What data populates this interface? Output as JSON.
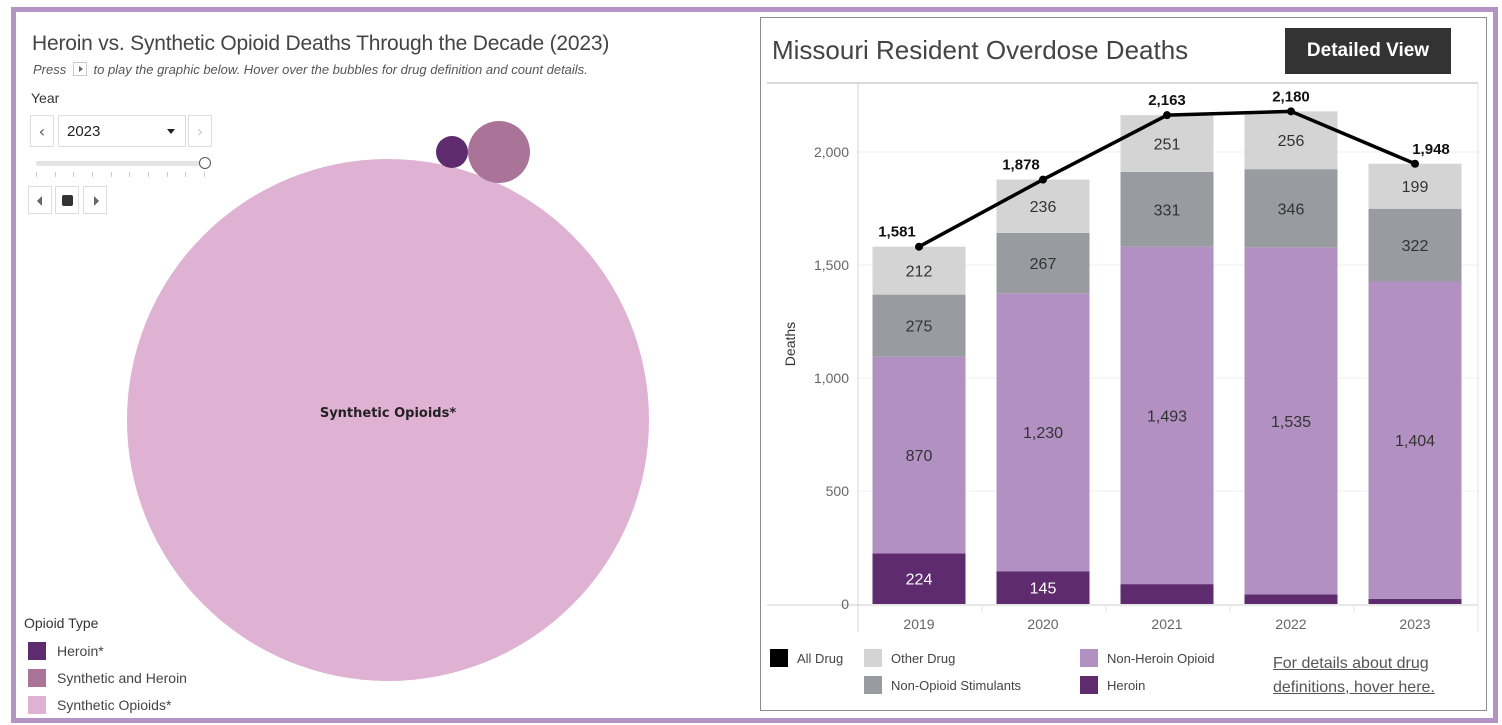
{
  "left_panel": {
    "title": "Heroin vs. Synthetic Opioid Deaths Through the Decade (2023)",
    "subtitle_prefix": "Press",
    "subtitle_suffix": "to play the graphic below. Hover over the bubbles for drug definition and count details.",
    "year_filter": {
      "label": "Year",
      "selected": "2023",
      "prev_icon": "‹",
      "next_icon": "›",
      "slider_ticks": 10,
      "slider_position": 1.0
    },
    "bubble_chart": {
      "type": "bubble",
      "year": "2023",
      "center_label": "Synthetic Opioids*",
      "bubbles": [
        {
          "name": "Synthetic Opioids*",
          "color": "#dfb1d2",
          "relative_size": 1.0
        },
        {
          "name": "Synthetic and Heroin",
          "color": "#a97498",
          "relative_size": 0.014
        },
        {
          "name": "Heroin*",
          "color": "#5e2b6e",
          "relative_size": 0.0038
        }
      ]
    },
    "legend": {
      "title": "Opioid Type",
      "items": [
        {
          "label": "Heroin*",
          "color": "#5e2b6e"
        },
        {
          "label": "Synthetic and Heroin",
          "color": "#a97498"
        },
        {
          "label": "Synthetic Opioids*",
          "color": "#dfb1d2"
        }
      ]
    }
  },
  "right_panel": {
    "title": "Missouri Resident Overdose Deaths",
    "detail_button": "Detailed View",
    "link_text": "For details about drug definitions, hover here."
  },
  "chart_data": {
    "type": "bar",
    "stacked": true,
    "title": "Missouri Resident Overdose Deaths",
    "xlabel": "",
    "ylabel": "Deaths",
    "ylim": [
      0,
      2280
    ],
    "yticks": [
      0,
      500,
      1000,
      1500,
      2000
    ],
    "ytick_labels": [
      "0",
      "500",
      "1,000",
      "1,500",
      "2,000"
    ],
    "grid": true,
    "categories": [
      "2019",
      "2020",
      "2021",
      "2022",
      "2023"
    ],
    "series": [
      {
        "name": "Heroin",
        "color": "#5e2b6e",
        "values": [
          224,
          145,
          88,
          43,
          23
        ],
        "labels": [
          "224",
          "145",
          "",
          "",
          ""
        ],
        "label_color": "#ffffff"
      },
      {
        "name": "Non-Heroin Opioid",
        "color": "#b291c2",
        "values": [
          870,
          1230,
          1493,
          1535,
          1404
        ],
        "labels": [
          "870",
          "1,230",
          "1,493",
          "1,535",
          "1,404"
        ],
        "label_color": "#333333"
      },
      {
        "name": "Non-Opioid Stimulants",
        "color": "#989ba0",
        "values": [
          275,
          267,
          331,
          346,
          322
        ],
        "labels": [
          "275",
          "267",
          "331",
          "346",
          "322"
        ],
        "label_color": "#333333"
      },
      {
        "name": "Other Drug",
        "color": "#d4d4d4",
        "values": [
          212,
          236,
          251,
          256,
          199
        ],
        "labels": [
          "212",
          "236",
          "251",
          "256",
          "199"
        ],
        "label_color": "#333333"
      }
    ],
    "line": {
      "name": "All Drug",
      "color": "#000000",
      "values": [
        1581,
        1878,
        2163,
        2180,
        1948
      ],
      "labels": [
        "1,581",
        "1,878",
        "2,163",
        "2,180",
        "1,948"
      ]
    },
    "legend": [
      {
        "label": "All Drug",
        "color": "#000000"
      },
      {
        "label": "Other Drug",
        "color": "#d4d4d4"
      },
      {
        "label": "Non-Opioid Stimulants",
        "color": "#989ba0"
      },
      {
        "label": "Non-Heroin Opioid",
        "color": "#b291c2"
      },
      {
        "label": "Heroin",
        "color": "#5e2b6e"
      }
    ],
    "legend_position": "bottom"
  }
}
